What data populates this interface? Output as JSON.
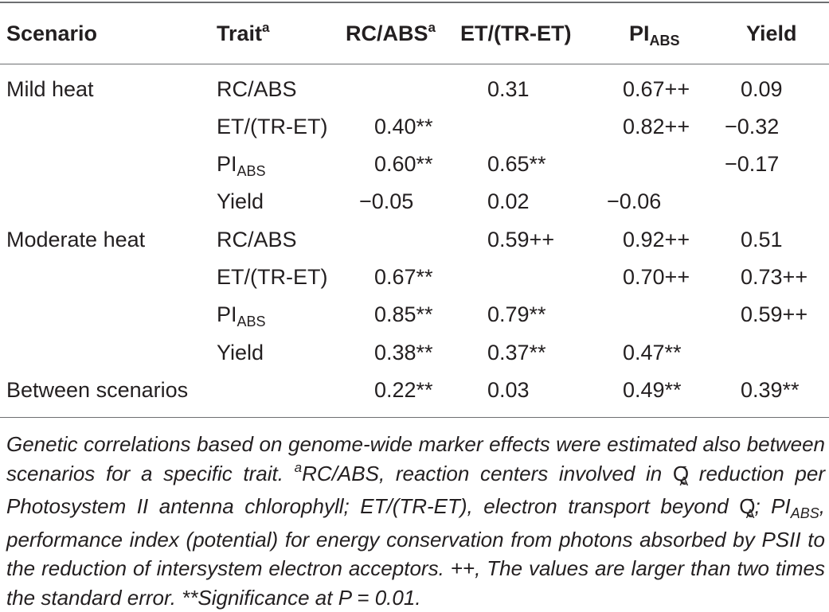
{
  "header": {
    "scenario": "Scenario",
    "trait": "Trait",
    "trait_sup": "a",
    "rcabs": "RC/ABS",
    "rcabs_sup": "a",
    "ettr": "ET/(TR-ET)",
    "pi_main": "PI",
    "pi_sub": "ABS",
    "yield": "Yield"
  },
  "rows": [
    {
      "scenario": "Mild heat",
      "trait": "RC/ABS",
      "rcabs": "",
      "ettr": "0.31",
      "pi": "0.67++",
      "yield": "0.09"
    },
    {
      "scenario": "",
      "trait": "ET/(TR-ET)",
      "rcabs": "0.40**",
      "ettr": "",
      "pi": "0.82++",
      "yield": "−0.32"
    },
    {
      "scenario": "",
      "trait_main": "PI",
      "trait_sub": "ABS",
      "rcabs": "0.60**",
      "ettr": "0.65**",
      "pi": "",
      "yield": "−0.17"
    },
    {
      "scenario": "",
      "trait": "Yield",
      "rcabs": "−0.05",
      "ettr": "0.02",
      "pi": "−0.06",
      "yield": ""
    },
    {
      "scenario": "Moderate heat",
      "trait": "RC/ABS",
      "rcabs": "",
      "ettr": "0.59++",
      "pi": "0.92++",
      "yield": "0.51"
    },
    {
      "scenario": "",
      "trait": "ET/(TR-ET)",
      "rcabs": "0.67**",
      "ettr": "",
      "pi": "0.70++",
      "yield": "0.73++"
    },
    {
      "scenario": "",
      "trait_main": "PI",
      "trait_sub": "ABS",
      "rcabs": "0.85**",
      "ettr": "0.79**",
      "pi": "",
      "yield": "0.59++"
    },
    {
      "scenario": "",
      "trait": "Yield",
      "rcabs": "0.38**",
      "ettr": "0.37**",
      "pi": "0.47**",
      "yield": ""
    },
    {
      "scenario": "Between scenarios",
      "trait": "",
      "rcabs": "0.22**",
      "ettr": "0.03",
      "pi": "0.49**",
      "yield": "0.39**"
    }
  ],
  "footnote": {
    "part1": "Genetic correlations based on genome-wide marker effects were estimated also between scenarios for a specific trait. ",
    "a_sup": "a",
    "part2": "RC/ABS, reaction centers involved in ",
    "qa_main": "Q",
    "qa_sup": "−",
    "qa_sub": "A",
    "part3": " reduction per Photosystem II antenna chlorophyll; ET/(TR-ET), electron transport beyond ",
    "part4": "; PI",
    "pi_sub": "ABS",
    "part5": ", performance index (potential) for energy conservation from photons absorbed by PSII to the reduction of intersystem electron acceptors. ++, The values are larger than two times the standard error. **Significance at P = 0.01."
  }
}
